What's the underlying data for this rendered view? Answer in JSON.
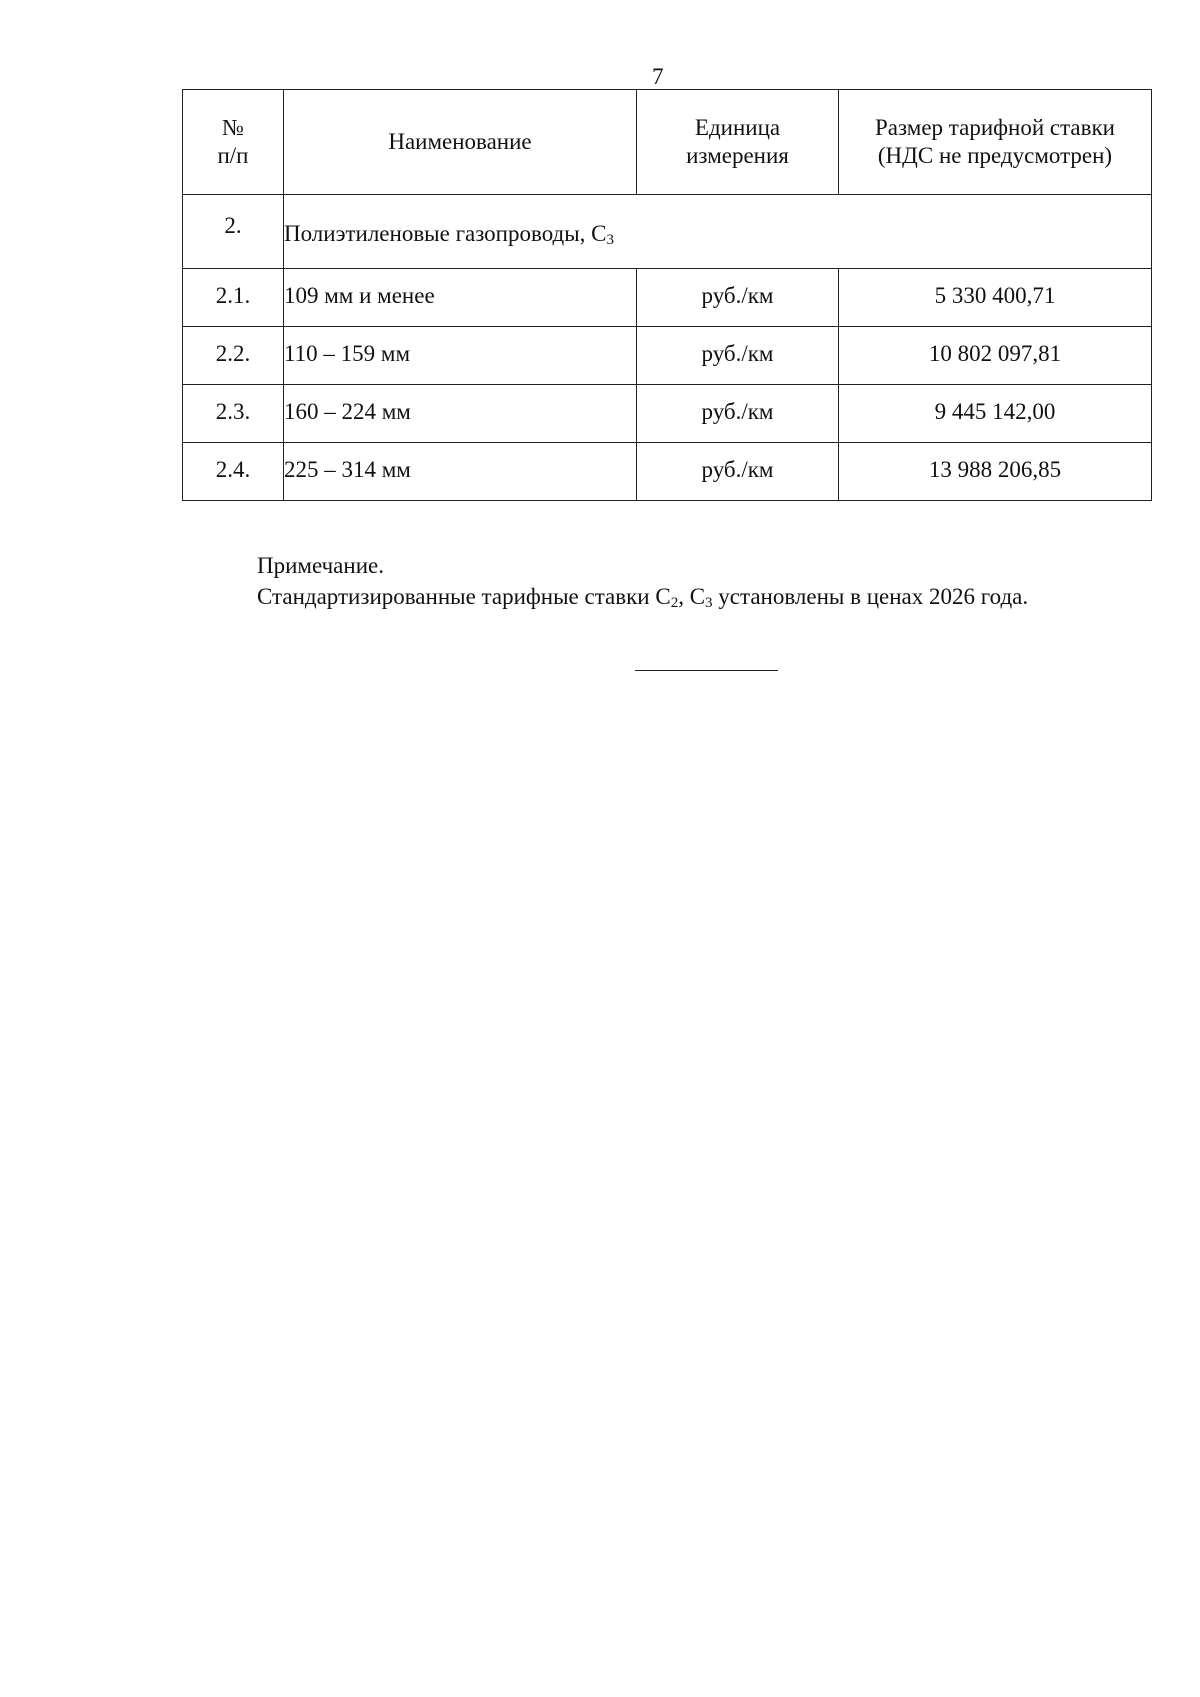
{
  "page_number": "7",
  "table": {
    "headers": [
      "№ п/п",
      "Наименование",
      "Единица измерения",
      "Размер тарифной ставки (НДС не предусмотрен)"
    ],
    "header_lines": {
      "num": [
        "№",
        "п/п"
      ],
      "unit": [
        "Единица",
        "измерения"
      ],
      "rate": [
        "Размер тарифной ставки",
        "(НДС не предусмотрен)"
      ]
    },
    "section": {
      "num": "2.",
      "name": "Полиэтиленовые газопроводы, С",
      "name_sub": "3"
    },
    "rows": [
      {
        "num": "2.1.",
        "name": "109 мм и менее",
        "unit": "руб./км",
        "rate": "5 330 400,71"
      },
      {
        "num": "2.2.",
        "name": "110 – 159 мм",
        "unit": "руб./км",
        "rate": "10 802 097,81"
      },
      {
        "num": "2.3.",
        "name": "160 – 224 мм",
        "unit": "руб./км",
        "rate": "9 445 142,00"
      },
      {
        "num": "2.4.",
        "name": "225 – 314 мм",
        "unit": "руб./км",
        "rate": "13 988 206,85"
      }
    ]
  },
  "note": {
    "title": "Примечание.",
    "text_1": "Стандартизированные тарифные ставки С",
    "sub_1": "2",
    "text_2": ", С",
    "sub_2": "3",
    "text_3": " установлены в ценах 2026 года."
  }
}
